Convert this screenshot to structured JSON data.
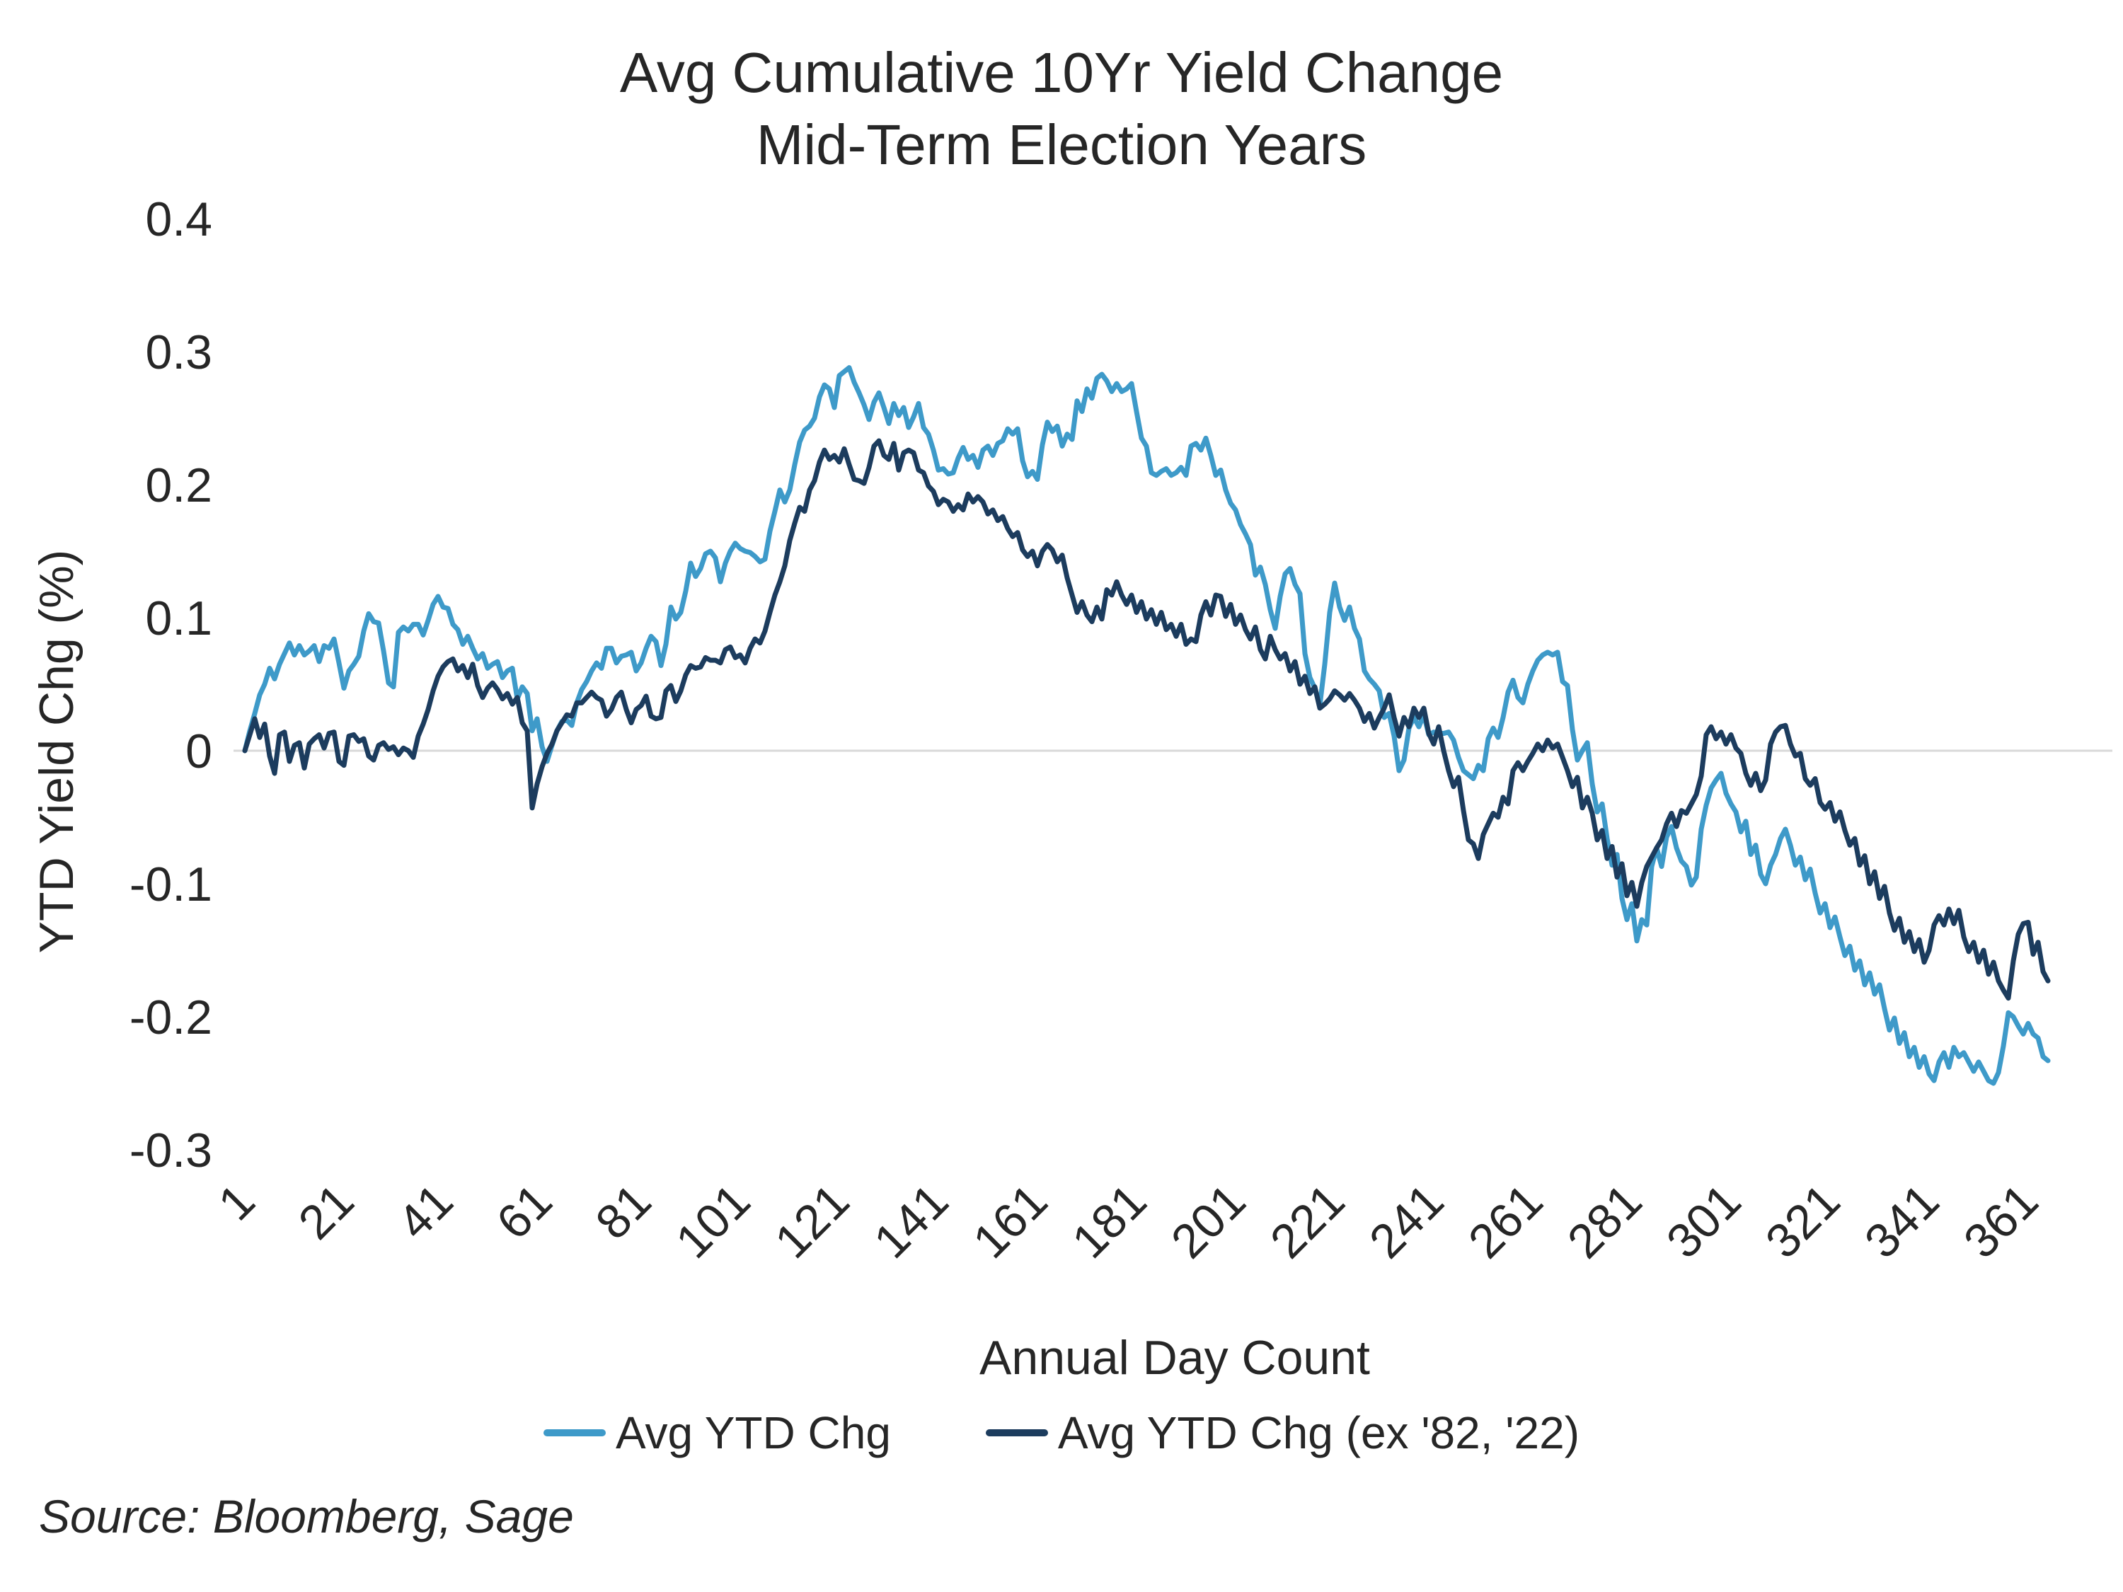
{
  "title": {
    "line1": "Avg Cumulative 10Yr Yield Change",
    "line2": "Mid-Term Election Years"
  },
  "source_note": "Source: Bloomberg, Sage",
  "colors": {
    "grid_line": "#D9D9D9",
    "text": "#262626",
    "background": "#FFFFFF"
  },
  "chart_data": {
    "type": "line",
    "title": "Avg Cumulative 10Yr Yield Change Mid-Term Election Years",
    "xlabel": "Annual Day Count",
    "ylabel": "YTD Yield Chg (%)",
    "x_ticks": [
      1,
      21,
      41,
      61,
      81,
      101,
      121,
      141,
      161,
      181,
      201,
      221,
      241,
      261,
      281,
      301,
      321,
      341,
      361
    ],
    "y_ticks": [
      0.4,
      0.3,
      0.2,
      0.1,
      0,
      -0.1,
      -0.2,
      -0.3
    ],
    "ylim": [
      -0.3,
      0.4
    ],
    "x_start_day": 1,
    "grid": "zero-line-only",
    "legend_position": "bottom",
    "series": [
      {
        "name": "Avg YTD Chg",
        "color": "#3E9AC9",
        "values": [
          0,
          0.015,
          0.028,
          0.042,
          0.05,
          0.062,
          0.054,
          0.065,
          0.073,
          0.081,
          0.072,
          0.079,
          0.072,
          0.075,
          0.079,
          0.067,
          0.079,
          0.077,
          0.084,
          0.066,
          0.047,
          0.06,
          0.065,
          0.071,
          0.09,
          0.103,
          0.097,
          0.096,
          0.075,
          0.051,
          0.048,
          0.089,
          0.093,
          0.09,
          0.095,
          0.095,
          0.087,
          0.098,
          0.11,
          0.116,
          0.108,
          0.107,
          0.095,
          0.091,
          0.08,
          0.086,
          0.077,
          0.069,
          0.073,
          0.062,
          0.065,
          0.067,
          0.055,
          0.06,
          0.062,
          0.039,
          0.048,
          0.043,
          0.015,
          0.024,
          0.003,
          -0.008,
          0.004,
          0.015,
          0.022,
          0.023,
          0.019,
          0.036,
          0.046,
          0.052,
          0.06,
          0.066,
          0.062,
          0.077,
          0.077,
          0.066,
          0.071,
          0.072,
          0.074,
          0.06,
          0.066,
          0.077,
          0.086,
          0.082,
          0.064,
          0.08,
          0.108,
          0.099,
          0.104,
          0.12,
          0.141,
          0.131,
          0.137,
          0.148,
          0.15,
          0.145,
          0.127,
          0.141,
          0.15,
          0.156,
          0.152,
          0.15,
          0.149,
          0.146,
          0.142,
          0.144,
          0.165,
          0.18,
          0.196,
          0.187,
          0.196,
          0.215,
          0.232,
          0.241,
          0.244,
          0.25,
          0.266,
          0.275,
          0.272,
          0.258,
          0.282,
          0.285,
          0.288,
          0.277,
          0.269,
          0.26,
          0.249,
          0.262,
          0.269,
          0.258,
          0.246,
          0.261,
          0.252,
          0.258,
          0.243,
          0.251,
          0.261,
          0.243,
          0.238,
          0.226,
          0.211,
          0.212,
          0.208,
          0.209,
          0.22,
          0.228,
          0.219,
          0.222,
          0.213,
          0.226,
          0.229,
          0.222,
          0.231,
          0.233,
          0.242,
          0.238,
          0.242,
          0.218,
          0.206,
          0.21,
          0.204,
          0.23,
          0.247,
          0.24,
          0.244,
          0.229,
          0.238,
          0.234,
          0.263,
          0.255,
          0.272,
          0.265,
          0.28,
          0.283,
          0.278,
          0.27,
          0.276,
          0.27,
          0.272,
          0.276,
          0.255,
          0.235,
          0.229,
          0.209,
          0.207,
          0.21,
          0.212,
          0.207,
          0.209,
          0.213,
          0.207,
          0.229,
          0.231,
          0.226,
          0.235,
          0.222,
          0.207,
          0.211,
          0.196,
          0.186,
          0.181,
          0.17,
          0.163,
          0.155,
          0.132,
          0.138,
          0.125,
          0.106,
          0.092,
          0.116,
          0.133,
          0.137,
          0.125,
          0.118,
          0.073,
          0.055,
          0.047,
          0.034,
          0.065,
          0.104,
          0.126,
          0.108,
          0.098,
          0.108,
          0.092,
          0.084,
          0.06,
          0.054,
          0.05,
          0.045,
          0.025,
          0.028,
          0.011,
          -0.015,
          -0.007,
          0.017,
          0.025,
          0.018,
          0.027,
          0.012,
          0.014,
          0.013,
          0.013,
          0.014,
          0.008,
          -0.005,
          -0.015,
          -0.018,
          -0.021,
          -0.011,
          -0.015,
          0.009,
          0.017,
          0.01,
          0.025,
          0.044,
          0.053,
          0.04,
          0.036,
          0.05,
          0.06,
          0.068,
          0.072,
          0.074,
          0.072,
          0.074,
          0.052,
          0.049,
          0.016,
          -0.007,
          0,
          0.006,
          -0.025,
          -0.046,
          -0.04,
          -0.066,
          -0.086,
          -0.078,
          -0.111,
          -0.127,
          -0.115,
          -0.143,
          -0.127,
          -0.131,
          -0.087,
          -0.073,
          -0.087,
          -0.065,
          -0.057,
          -0.073,
          -0.083,
          -0.087,
          -0.101,
          -0.095,
          -0.059,
          -0.041,
          -0.028,
          -0.022,
          -0.017,
          -0.032,
          -0.04,
          -0.046,
          -0.061,
          -0.053,
          -0.078,
          -0.071,
          -0.093,
          -0.1,
          -0.086,
          -0.078,
          -0.066,
          -0.059,
          -0.071,
          -0.086,
          -0.08,
          -0.097,
          -0.089,
          -0.107,
          -0.122,
          -0.115,
          -0.133,
          -0.125,
          -0.14,
          -0.154,
          -0.147,
          -0.165,
          -0.158,
          -0.176,
          -0.167,
          -0.183,
          -0.176,
          -0.194,
          -0.21,
          -0.201,
          -0.22,
          -0.212,
          -0.23,
          -0.223,
          -0.238,
          -0.23,
          -0.243,
          -0.248,
          -0.234,
          -0.227,
          -0.238,
          -0.223,
          -0.23,
          -0.227,
          -0.234,
          -0.241,
          -0.234,
          -0.241,
          -0.248,
          -0.25,
          -0.242,
          -0.222,
          -0.197,
          -0.2,
          -0.207,
          -0.213,
          -0.205,
          -0.213,
          -0.216,
          -0.23,
          -0.233
        ]
      },
      {
        "name": "Avg YTD Chg (ex '82, '22)",
        "color": "#1C3C5E",
        "values": [
          0,
          0.012,
          0.024,
          0.01,
          0.02,
          -0.004,
          -0.017,
          0.012,
          0.014,
          -0.008,
          0.004,
          0.006,
          -0.013,
          0.005,
          0.009,
          0.012,
          0.002,
          0.013,
          0.014,
          -0.008,
          -0.011,
          0.011,
          0.012,
          0.007,
          0.009,
          -0.004,
          -0.007,
          0.004,
          0.006,
          0.001,
          0.003,
          -0.003,
          0.002,
          0,
          -0.005,
          0.011,
          0.02,
          0.031,
          0.045,
          0.056,
          0.063,
          0.067,
          0.069,
          0.06,
          0.064,
          0.055,
          0.065,
          0.049,
          0.04,
          0.047,
          0.051,
          0.046,
          0.039,
          0.043,
          0.035,
          0.04,
          0.021,
          0.015,
          -0.043,
          -0.025,
          -0.012,
          -0.002,
          0.005,
          0.015,
          0.021,
          0.027,
          0.026,
          0.036,
          0.036,
          0.04,
          0.044,
          0.04,
          0.038,
          0.026,
          0.031,
          0.04,
          0.044,
          0.031,
          0.021,
          0.031,
          0.034,
          0.041,
          0.026,
          0.024,
          0.025,
          0.045,
          0.049,
          0.037,
          0.045,
          0.057,
          0.064,
          0.062,
          0.063,
          0.07,
          0.068,
          0.068,
          0.066,
          0.076,
          0.078,
          0.07,
          0.072,
          0.066,
          0.077,
          0.084,
          0.081,
          0.09,
          0.104,
          0.117,
          0.127,
          0.139,
          0.158,
          0.171,
          0.183,
          0.18,
          0.196,
          0.203,
          0.217,
          0.226,
          0.219,
          0.222,
          0.217,
          0.227,
          0.215,
          0.204,
          0.203,
          0.201,
          0.213,
          0.229,
          0.233,
          0.222,
          0.219,
          0.231,
          0.211,
          0.224,
          0.226,
          0.224,
          0.211,
          0.209,
          0.199,
          0.195,
          0.185,
          0.189,
          0.187,
          0.18,
          0.185,
          0.181,
          0.193,
          0.187,
          0.191,
          0.187,
          0.178,
          0.181,
          0.173,
          0.176,
          0.167,
          0.161,
          0.164,
          0.151,
          0.146,
          0.15,
          0.139,
          0.15,
          0.155,
          0.151,
          0.142,
          0.147,
          0.13,
          0.117,
          0.104,
          0.112,
          0.102,
          0.097,
          0.108,
          0.099,
          0.121,
          0.117,
          0.127,
          0.117,
          0.11,
          0.117,
          0.104,
          0.112,
          0.099,
          0.106,
          0.095,
          0.104,
          0.091,
          0.095,
          0.086,
          0.095,
          0.08,
          0.084,
          0.082,
          0.102,
          0.112,
          0.102,
          0.117,
          0.116,
          0.101,
          0.11,
          0.095,
          0.102,
          0.091,
          0.084,
          0.093,
          0.076,
          0.069,
          0.086,
          0.076,
          0.069,
          0.073,
          0.06,
          0.067,
          0.05,
          0.056,
          0.043,
          0.048,
          0.032,
          0.035,
          0.039,
          0.045,
          0.042,
          0.038,
          0.043,
          0.038,
          0.032,
          0.022,
          0.028,
          0.017,
          0.025,
          0.032,
          0.042,
          0.025,
          0.011,
          0.025,
          0.018,
          0.032,
          0.025,
          0.032,
          0.013,
          0.005,
          0.018,
          0,
          -0.015,
          -0.027,
          -0.02,
          -0.045,
          -0.067,
          -0.07,
          -0.081,
          -0.063,
          -0.055,
          -0.047,
          -0.05,
          -0.035,
          -0.04,
          -0.015,
          -0.009,
          -0.015,
          -0.008,
          -0.002,
          0.005,
          0,
          0.008,
          0.002,
          0.005,
          -0.005,
          -0.015,
          -0.027,
          -0.02,
          -0.043,
          -0.035,
          -0.047,
          -0.067,
          -0.06,
          -0.081,
          -0.072,
          -0.095,
          -0.085,
          -0.109,
          -0.099,
          -0.117,
          -0.099,
          -0.087,
          -0.08,
          -0.073,
          -0.067,
          -0.055,
          -0.047,
          -0.057,
          -0.045,
          -0.047,
          -0.04,
          -0.033,
          -0.019,
          0.012,
          0.018,
          0.009,
          0.014,
          0.005,
          0.012,
          0.002,
          -0.002,
          -0.017,
          -0.026,
          -0.017,
          -0.03,
          -0.022,
          0.005,
          0.014,
          0.018,
          0.019,
          0.005,
          -0.004,
          -0.002,
          -0.021,
          -0.026,
          -0.021,
          -0.039,
          -0.044,
          -0.039,
          -0.053,
          -0.046,
          -0.06,
          -0.071,
          -0.066,
          -0.086,
          -0.079,
          -0.1,
          -0.091,
          -0.111,
          -0.102,
          -0.122,
          -0.135,
          -0.126,
          -0.144,
          -0.136,
          -0.151,
          -0.142,
          -0.159,
          -0.15,
          -0.131,
          -0.124,
          -0.131,
          -0.119,
          -0.13,
          -0.12,
          -0.14,
          -0.151,
          -0.144,
          -0.159,
          -0.15,
          -0.168,
          -0.159,
          -0.173,
          -0.18,
          -0.186,
          -0.158,
          -0.138,
          -0.13,
          -0.129,
          -0.153,
          -0.144,
          -0.166,
          -0.173
        ]
      }
    ]
  }
}
